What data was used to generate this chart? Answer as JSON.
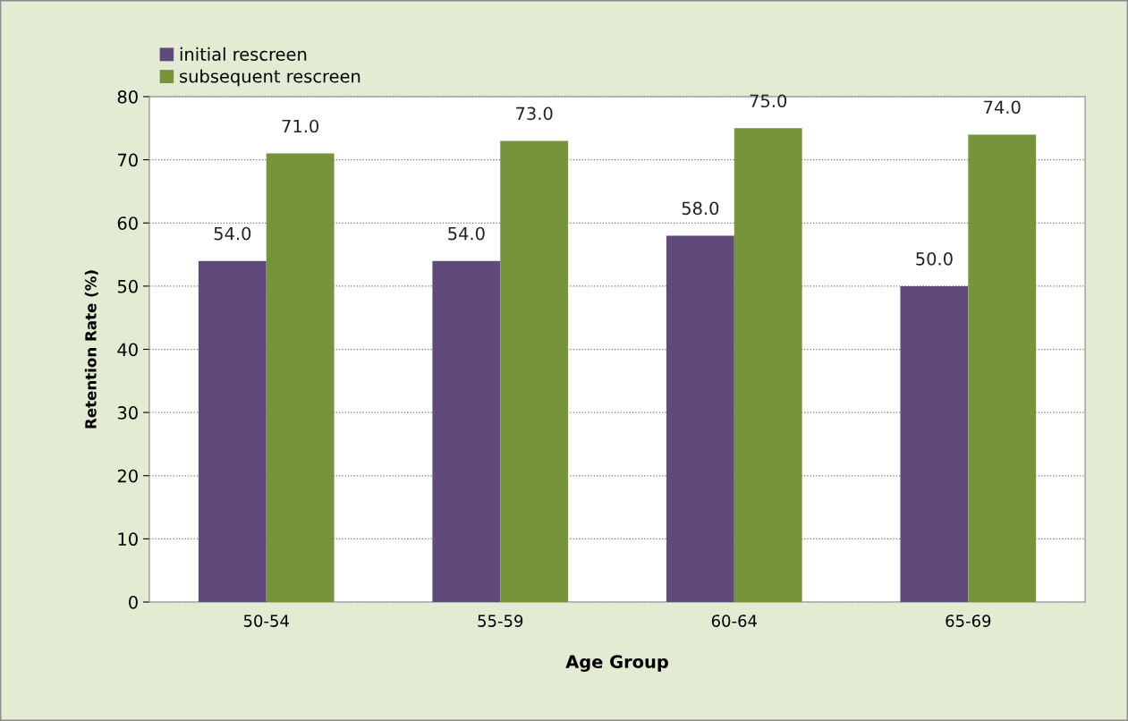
{
  "chart_data": {
    "type": "bar",
    "xlabel": "Age Group",
    "ylabel": "Retention Rate (%)",
    "categories": [
      "50-54",
      "55-59",
      "60-64",
      "65-69"
    ],
    "series": [
      {
        "name": "initial rescreen",
        "color": "#604a7b",
        "values": [
          54,
          54,
          58,
          50
        ],
        "value_labels": [
          "54.0",
          "54.0",
          "58.0",
          "50.0"
        ]
      },
      {
        "name": "subsequent rescreen",
        "color": "#77933c",
        "values": [
          71,
          73,
          75,
          74
        ],
        "value_labels": [
          "71.0",
          "73.0",
          "75.0",
          "74.0"
        ]
      }
    ],
    "ylim": [
      0,
      80
    ],
    "yticks": [
      0,
      10,
      20,
      30,
      40,
      50,
      60,
      70,
      80
    ],
    "grid": "y",
    "legend": "top left"
  }
}
